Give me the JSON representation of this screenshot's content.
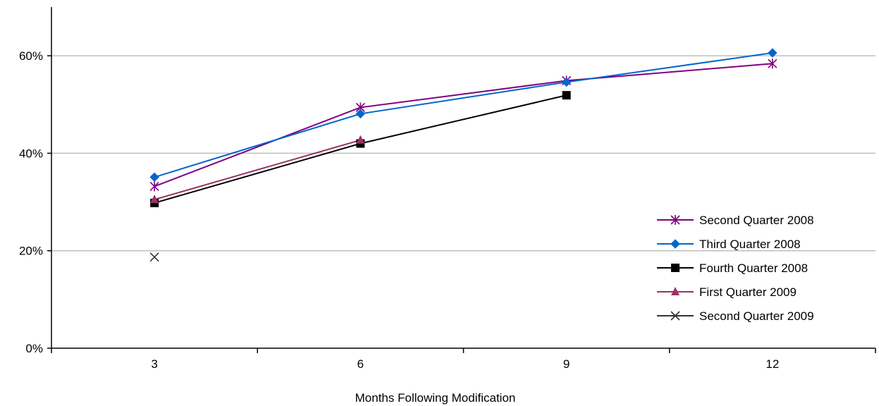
{
  "chart_data": {
    "type": "line",
    "title": "",
    "xlabel": "Months Following Modification",
    "ylabel": "",
    "categories": [
      "3",
      "6",
      "9",
      "12"
    ],
    "x": [
      3,
      6,
      9,
      12
    ],
    "xlim": [
      1.5,
      13.5
    ],
    "ylim": [
      0,
      0.7
    ],
    "y_ticks": [
      0,
      0.2,
      0.4,
      0.6
    ],
    "y_tick_labels": [
      "0%",
      "20%",
      "40%",
      "60%"
    ],
    "grid": "horizontal",
    "legend_position": "right",
    "series": [
      {
        "name": "Second Quarter 2008",
        "color": "#800080",
        "marker": "asterisk",
        "values": [
          0.332,
          0.494,
          0.549,
          0.584
        ]
      },
      {
        "name": "Third Quarter 2008",
        "color": "#0066CC",
        "marker": "diamond",
        "values": [
          0.351,
          0.481,
          0.546,
          0.606
        ]
      },
      {
        "name": "Fourth Quarter 2008",
        "color": "#000000",
        "marker": "square",
        "values": [
          0.298,
          0.42,
          0.519,
          null
        ]
      },
      {
        "name": "First Quarter 2009",
        "color": "#993366",
        "marker": "triangle",
        "values": [
          0.305,
          0.427,
          null,
          null
        ]
      },
      {
        "name": "Second Quarter 2009",
        "color": "#333333",
        "marker": "x",
        "values": [
          0.187,
          null,
          null,
          null
        ]
      }
    ]
  }
}
